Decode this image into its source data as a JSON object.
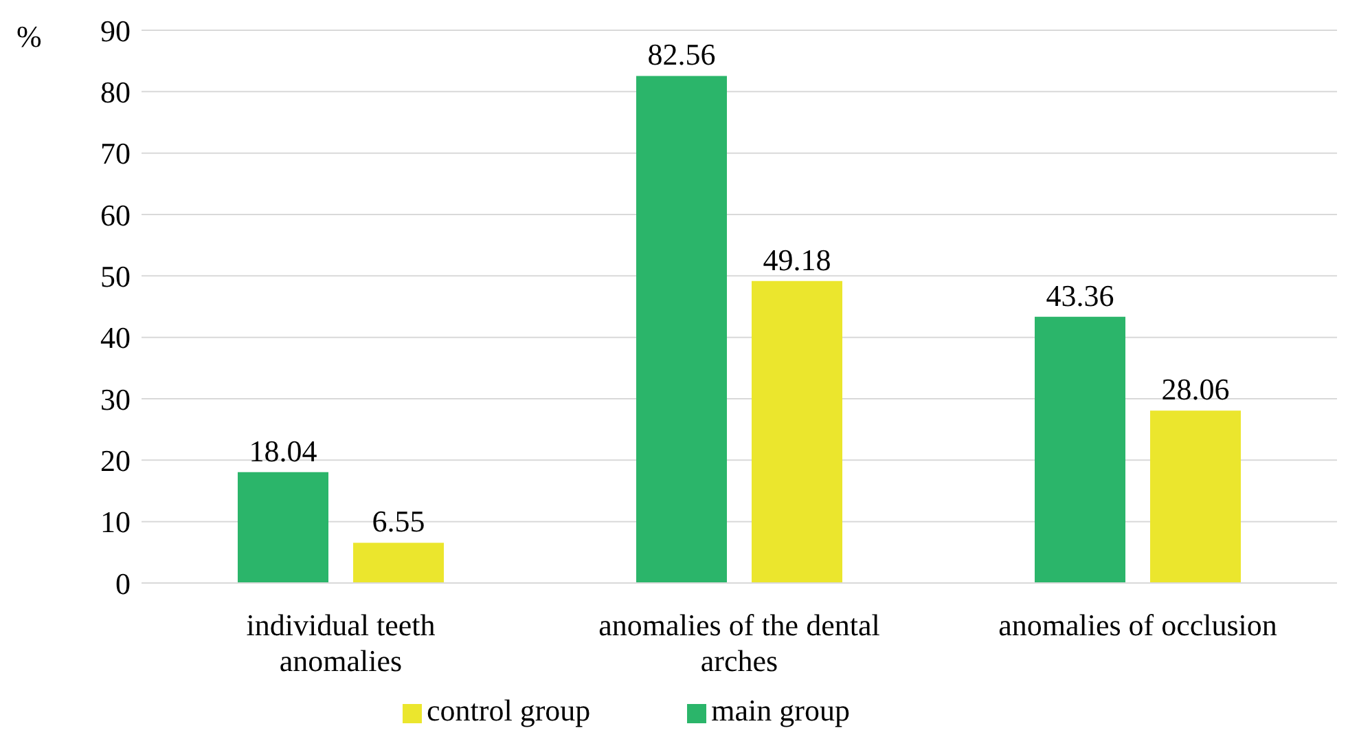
{
  "chart_data": {
    "type": "bar",
    "ylabel": "%",
    "categories": [
      "individual teeth anomalies",
      "anomalies of the dental arches",
      "anomalies of occlusion"
    ],
    "series": [
      {
        "name": "main group",
        "color": "#2bb56a",
        "values": [
          18.04,
          82.56,
          43.36
        ]
      },
      {
        "name": "control group",
        "color": "#ebe62d",
        "values": [
          6.55,
          49.18,
          28.06
        ]
      }
    ],
    "ylim": [
      0,
      90
    ],
    "yticks": [
      0,
      10,
      20,
      30,
      40,
      50,
      60,
      70,
      80,
      90
    ],
    "grid": "y",
    "legend": "bottom",
    "data_labels": true
  }
}
